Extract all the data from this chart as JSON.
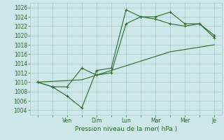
{
  "background_color": "#cce8e8",
  "grid_color": "#aacccc",
  "line_color": "#2d6a2d",
  "x_tick_labels": [
    "",
    "",
    "Ven",
    "",
    "Dim",
    "",
    "Lun",
    "",
    "Mar",
    "",
    "Mer",
    "",
    "Je"
  ],
  "x_tick_positions": [
    0,
    1,
    2,
    3,
    4,
    5,
    6,
    7,
    8,
    9,
    10,
    11,
    12
  ],
  "ylim": [
    1003,
    1027
  ],
  "yticks": [
    1004,
    1006,
    1008,
    1010,
    1012,
    1014,
    1016,
    1018,
    1020,
    1022,
    1024,
    1026
  ],
  "xlabel": "Pression niveau de la mer( hPa )",
  "series1": [
    [
      0,
      1010.0
    ],
    [
      1,
      1009.0
    ],
    [
      2,
      1009.0
    ],
    [
      3,
      1013.0
    ],
    [
      4,
      1011.5
    ],
    [
      5,
      1012.0
    ],
    [
      6,
      1022.5
    ],
    [
      7,
      1024.0
    ],
    [
      8,
      1023.5
    ],
    [
      9,
      1022.5
    ],
    [
      10,
      1022.0
    ],
    [
      11,
      1022.5
    ],
    [
      12,
      1019.5
    ]
  ],
  "series2": [
    [
      0,
      1010.0
    ],
    [
      1,
      1009.0
    ],
    [
      2,
      1007.0
    ],
    [
      3,
      1004.5
    ],
    [
      4,
      1012.5
    ],
    [
      5,
      1013.0
    ],
    [
      6,
      1025.5
    ],
    [
      7,
      1024.0
    ],
    [
      8,
      1024.0
    ],
    [
      9,
      1025.0
    ],
    [
      10,
      1022.5
    ],
    [
      11,
      1022.5
    ],
    [
      12,
      1020.0
    ]
  ],
  "series3": [
    [
      0,
      1010.0
    ],
    [
      3,
      1010.5
    ],
    [
      6,
      1013.5
    ],
    [
      9,
      1016.5
    ],
    [
      12,
      1018.0
    ]
  ]
}
